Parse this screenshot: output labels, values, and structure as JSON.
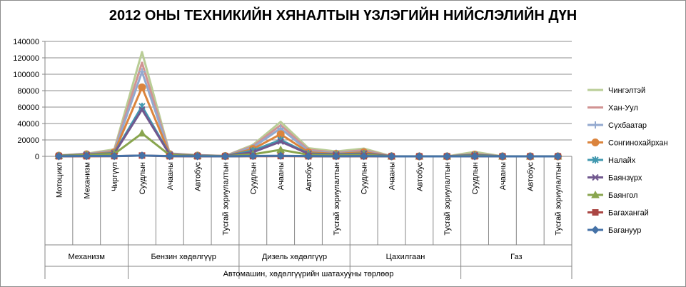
{
  "chart_data": {
    "type": "line",
    "title": "2012 ОНЫ ТЕХНИКИЙН ХЯНАЛТЫН ҮЗЛЭГИЙН НИЙСЛЭЛИЙН ДҮН",
    "xlabel": "Автомашин, хөдөлгүүрийн шатахууны төрлөөр",
    "ylabel": "",
    "ylim": [
      0,
      140000
    ],
    "yticks": [
      "0",
      "20000",
      "40000",
      "60000",
      "80000",
      "100000",
      "120000",
      "140000"
    ],
    "grid": true,
    "legend_position": "right",
    "categories": [
      "Мотоцикл",
      "Механизм",
      "Чиргүүл",
      "Суудлын",
      "Ачааны",
      "Автобус",
      "Тусгай зориулалтын",
      "Суудлын",
      "Ачааны",
      "Автобус",
      "Тусгай зориулалтын",
      "Суудлын",
      "Ачааны",
      "Автобус",
      "Тусгай зориулалтын",
      "Суудлын",
      "Ачааны",
      "Автобус",
      "Тусгай зориулалтын"
    ],
    "groups": [
      {
        "label": "Механизм",
        "span": 3
      },
      {
        "label": "Бензин хөдөлгүүр",
        "span": 4
      },
      {
        "label": "Дизель хөдөлгүүр",
        "span": 4
      },
      {
        "label": "Цахилгаан",
        "span": 4
      },
      {
        "label": "Газ",
        "span": 4
      }
    ],
    "series": [
      {
        "name": "Баганууp",
        "color": "#4572a7",
        "marker": "diamond",
        "values": [
          100,
          400,
          300,
          1000,
          300,
          200,
          50,
          400,
          700,
          300,
          150,
          300,
          10,
          10,
          10,
          100,
          10,
          10,
          10
        ]
      },
      {
        "name": "Багахангай",
        "color": "#aa4643",
        "marker": "square",
        "values": [
          50,
          100,
          200,
          1000,
          100,
          50,
          20,
          200,
          300,
          100,
          50,
          100,
          10,
          10,
          10,
          50,
          10,
          10,
          10
        ]
      },
      {
        "name": "Баянгол",
        "color": "#89a54e",
        "marker": "triangle",
        "values": [
          500,
          1500,
          3000,
          28000,
          1500,
          500,
          200,
          2500,
          8000,
          2000,
          1200,
          2000,
          50,
          20,
          20,
          1000,
          20,
          20,
          20
        ]
      },
      {
        "name": "Баянзүрх",
        "color": "#71588f",
        "marker": "x",
        "values": [
          700,
          2000,
          3500,
          57000,
          2000,
          800,
          300,
          5000,
          18000,
          3000,
          2000,
          3000,
          80,
          30,
          30,
          1500,
          30,
          30,
          30
        ]
      },
      {
        "name": "Налайх",
        "color": "#4198af",
        "marker": "star",
        "values": [
          800,
          2200,
          4000,
          61000,
          2200,
          900,
          350,
          7000,
          20000,
          3500,
          2500,
          3500,
          90,
          35,
          35,
          1800,
          35,
          35,
          35
        ]
      },
      {
        "name": "Сонгинохайрхан",
        "color": "#db843d",
        "marker": "circle",
        "values": [
          900,
          2500,
          5000,
          84000,
          2600,
          1000,
          400,
          9000,
          27000,
          5000,
          3000,
          5000,
          100,
          40,
          40,
          2200,
          40,
          40,
          40
        ]
      },
      {
        "name": "Сүхбаатар",
        "color": "#93a9cf",
        "marker": "plus",
        "values": [
          1000,
          2800,
          6000,
          103000,
          3000,
          1200,
          450,
          11000,
          34000,
          6500,
          3800,
          6000,
          110,
          45,
          45,
          2600,
          45,
          45,
          45
        ]
      },
      {
        "name": "Хан-Уул",
        "color": "#d19392",
        "marker": "none",
        "values": [
          1100,
          3000,
          7000,
          114000,
          3300,
          1400,
          500,
          12500,
          38000,
          8000,
          4500,
          7500,
          120,
          50,
          50,
          3200,
          50,
          50,
          50
        ]
      },
      {
        "name": "Чингэлтэй",
        "color": "#b9cd96",
        "marker": "none",
        "values": [
          1200,
          3300,
          8500,
          127000,
          3600,
          1600,
          550,
          14000,
          42000,
          10000,
          6000,
          9500,
          130,
          55,
          55,
          5500,
          55,
          55,
          55
        ]
      }
    ]
  }
}
